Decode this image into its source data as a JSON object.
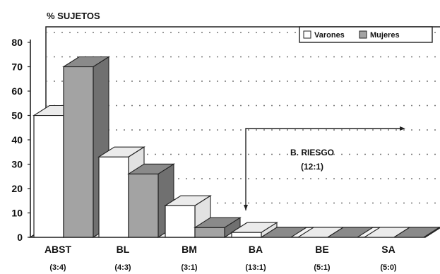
{
  "chart_data": {
    "type": "bar",
    "ylabel": "% SUJETOS",
    "ylim": [
      0,
      80
    ],
    "yticks": [
      0,
      10,
      20,
      30,
      40,
      50,
      60,
      70,
      80
    ],
    "grid": true,
    "categories": [
      "ABST",
      "BL",
      "BM",
      "BA",
      "BE",
      "SA"
    ],
    "category_ratios": [
      "(3:4)",
      "(4:3)",
      "(3:1)",
      "(13:1)",
      "(5:1)",
      "(5:0)"
    ],
    "series": [
      {
        "name": "Varones",
        "color": "#ffffff",
        "values": [
          50,
          33,
          13,
          2,
          0,
          0
        ]
      },
      {
        "name": "Mujeres",
        "color": "#a3a3a3",
        "values": [
          70,
          26,
          4,
          0,
          0,
          0
        ]
      }
    ],
    "legend_position": "top-right",
    "annotation": {
      "text": "B. RIESGO",
      "subtext": "(12:1)"
    }
  }
}
